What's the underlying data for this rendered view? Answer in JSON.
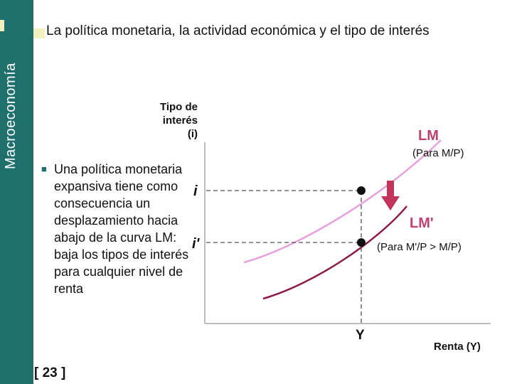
{
  "sidebar": {
    "label": "Macroeconomía",
    "color": "#1f6f6c"
  },
  "slide": {
    "title": "La política monetaria, la actividad económica y el tipo de interés"
  },
  "bullet": {
    "text": "Una política monetaria expansiva tiene como consecuencia un desplazamiento hacia abajo de la curva LM: baja los tipos de interés para cualquier nivel de renta"
  },
  "page_number": "[ 23 ]",
  "diagram": {
    "y_axis_label_lines": [
      "Tipo de",
      "interés",
      "(i)"
    ],
    "x_axis_label": "Renta (Y)",
    "i_label": "i",
    "i_prime_label": "i'",
    "y_label": "Y",
    "lm_label": "LM",
    "lm_sub": "(Para M/P)",
    "lm_prime_label": "LM'",
    "lm_prime_sub": "(Para M'/P > M/P)",
    "colors": {
      "lm": "#e6a2de",
      "lm_prime": "#8b1a4a",
      "arrow": "#c2345a",
      "label": "#c0406e"
    }
  }
}
